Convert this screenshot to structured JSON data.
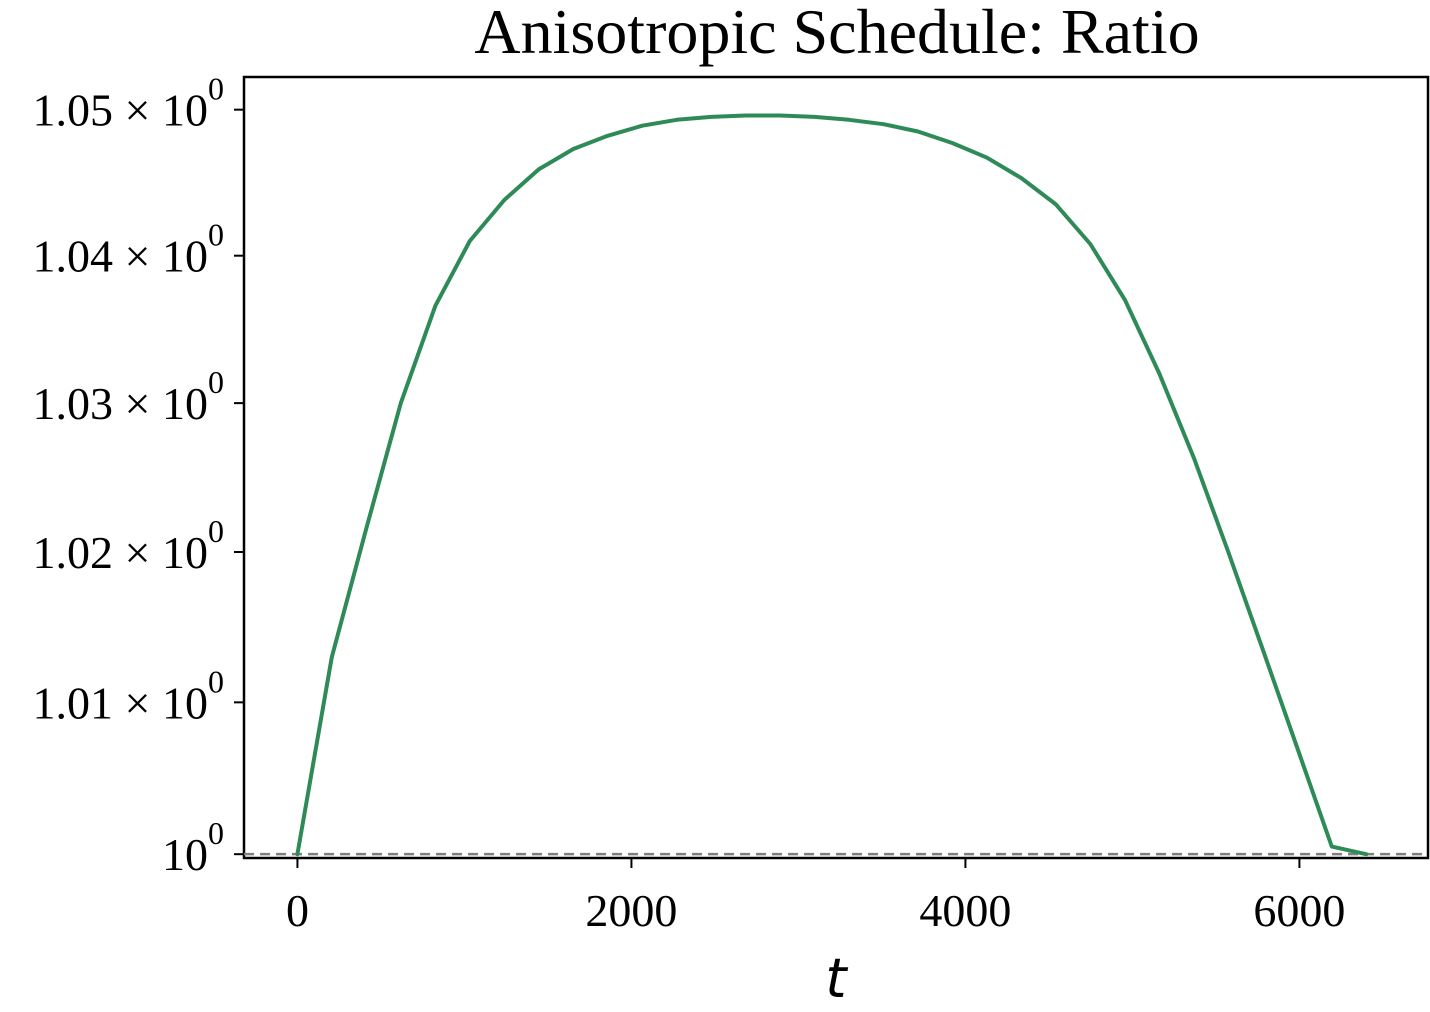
{
  "chart_data": {
    "type": "line",
    "title": "Anisotropic Schedule: Ratio",
    "xlabel": "t",
    "ylabel": "",
    "xlim": [
      -320,
      6770
    ],
    "ylim": [
      0.99975,
      1.05225
    ],
    "yscale": "log",
    "x_ticks": [
      {
        "value": 0,
        "label": "0"
      },
      {
        "value": 2000,
        "label": "2000"
      },
      {
        "value": 4000,
        "label": "4000"
      },
      {
        "value": 6000,
        "label": "6000"
      }
    ],
    "y_ticks": [
      {
        "value": 1.0,
        "mantissa": "",
        "base": "10",
        "exp": "0"
      },
      {
        "value": 1.01,
        "mantissa": "1.01 × ",
        "base": "10",
        "exp": "0"
      },
      {
        "value": 1.02,
        "mantissa": "1.02 × ",
        "base": "10",
        "exp": "0"
      },
      {
        "value": 1.03,
        "mantissa": "1.03 × ",
        "base": "10",
        "exp": "0"
      },
      {
        "value": 1.04,
        "mantissa": "1.04 × ",
        "base": "10",
        "exp": "0"
      },
      {
        "value": 1.05,
        "mantissa": "1.05 × ",
        "base": "10",
        "exp": "0"
      }
    ],
    "grid": false,
    "series": [
      {
        "color": "#2e8b57",
        "x": [
          0,
          206,
          413,
          619,
          826,
          1032,
          1239,
          1445,
          1652,
          1858,
          2065,
          2271,
          2477,
          2684,
          2890,
          3097,
          3303,
          3510,
          3716,
          3923,
          4129,
          4335,
          4542,
          4748,
          4955,
          5161,
          5368,
          5574,
          5781,
          5987,
          6194,
          6400
        ],
        "y": [
          1.0,
          1.013,
          1.0216,
          1.03,
          1.0366,
          1.041,
          1.0438,
          1.0459,
          1.0473,
          1.0482,
          1.0489,
          1.0493,
          1.0495,
          1.0496,
          1.0496,
          1.0495,
          1.0493,
          1.049,
          1.0485,
          1.0477,
          1.0467,
          1.0453,
          1.0435,
          1.0408,
          1.037,
          1.032,
          1.0263,
          1.02,
          1.0135,
          1.007,
          1.0005,
          1.0
        ]
      }
    ],
    "reference_line": {
      "y": 1.0,
      "style": "dashed",
      "color": "#808080"
    },
    "colors": {
      "axis": "#000000"
    }
  }
}
